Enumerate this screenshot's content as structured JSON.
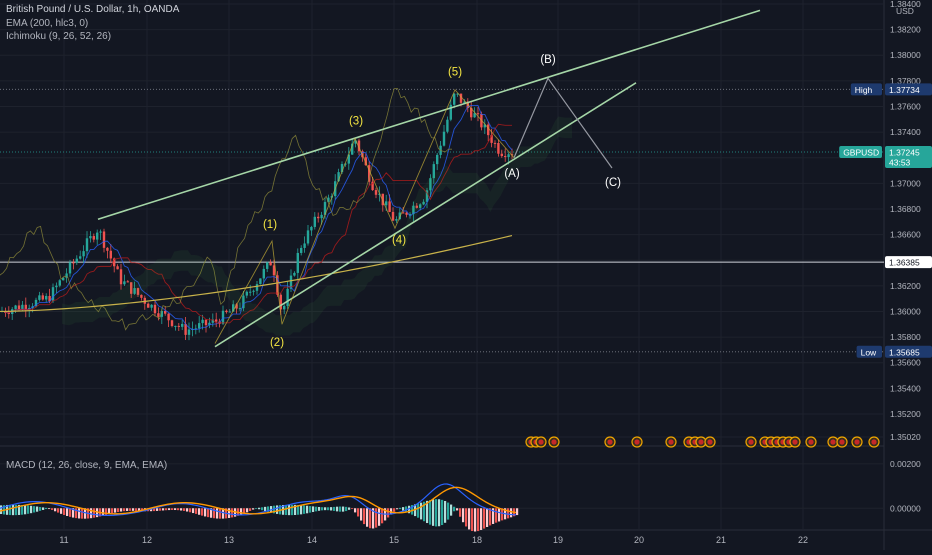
{
  "header": {
    "title": "British Pound / U.S. Dollar, 1h, OANDA",
    "ema_label": "EMA (200, hlc3, 0)",
    "ichimoku_label": "Ichimoku (9, 26, 52, 26)"
  },
  "macd": {
    "label": "MACD (12, 26, close, 9, EMA, EMA)",
    "y_ticks": [
      "0.00200",
      "0.00000"
    ]
  },
  "colors": {
    "background": "#131722",
    "grid": "#1e222d",
    "up": "#26a69a",
    "down": "#ef5350",
    "trendline": "#a5d6a7",
    "ema": "#c8b24a",
    "wave_label": "#f5e642",
    "projection": "#9598a1",
    "macd_line": "#2962ff",
    "signal_line": "#ff9800",
    "price_tag": "#26a69a",
    "high_low_tag": "#1e3a6e"
  },
  "price_axis": {
    "currency": "USD",
    "ticks": [
      "1.38400",
      "1.38200",
      "1.38000",
      "1.37800",
      "1.37600",
      "1.37400",
      "1.37200",
      "1.37000",
      "1.36800",
      "1.36600",
      "1.36400",
      "1.36200",
      "1.36000",
      "1.35800",
      "1.35600",
      "1.35400",
      "1.35200",
      "1.35020"
    ]
  },
  "markers": {
    "high": {
      "label": "High",
      "value": "1.37734"
    },
    "low": {
      "label": "Low",
      "value": "1.35685"
    },
    "current": {
      "label": "GBPUSD",
      "value": "1.37245",
      "countdown": "43:53"
    },
    "horizontal": {
      "value": "1.36385"
    }
  },
  "wave_labels": {
    "impulse": [
      "(1)",
      "(2)",
      "(3)",
      "(4)",
      "(5)"
    ],
    "corrective": [
      "(A)",
      "(B)",
      "(C)"
    ]
  },
  "chart_data": {
    "type": "line",
    "title": "British Pound / U.S. Dollar, 1h, OANDA",
    "x_ticks": [
      "11",
      "12",
      "13",
      "14",
      "15",
      "18",
      "19",
      "20",
      "21",
      "22"
    ],
    "ylim": [
      1.35,
      1.385
    ],
    "price_path": {
      "x": [
        "11 00:00",
        "11 12:00",
        "12 00:00",
        "12 12:00",
        "13 00:00",
        "13 10:00",
        "13 18:00",
        "14 06:00",
        "14 14:00",
        "15 00:00",
        "15 10:00",
        "15 20:00",
        "18 02:00",
        "18 08:00",
        "18 12:00"
      ],
      "close": [
        1.36,
        1.3665,
        1.361,
        1.3585,
        1.36,
        1.363,
        1.3598,
        1.3685,
        1.374,
        1.368,
        1.374,
        1.377,
        1.375,
        1.372,
        1.3725
      ]
    },
    "ema_200": {
      "start": 1.36,
      "end": 1.366
    },
    "wave_points": [
      {
        "label": "(1)",
        "value": 1.3655
      },
      {
        "label": "(2)",
        "value": 1.359
      },
      {
        "label": "(3)",
        "value": 1.3735
      },
      {
        "label": "(4)",
        "value": 1.3665
      },
      {
        "label": "(5)",
        "value": 1.3773
      },
      {
        "label": "(A)",
        "value": 1.372
      },
      {
        "label": "(B)",
        "value": 1.3782
      },
      {
        "label": "(C)",
        "value": 1.3712
      }
    ],
    "macd_ylim": [
      -0.0008,
      0.0024
    ]
  }
}
